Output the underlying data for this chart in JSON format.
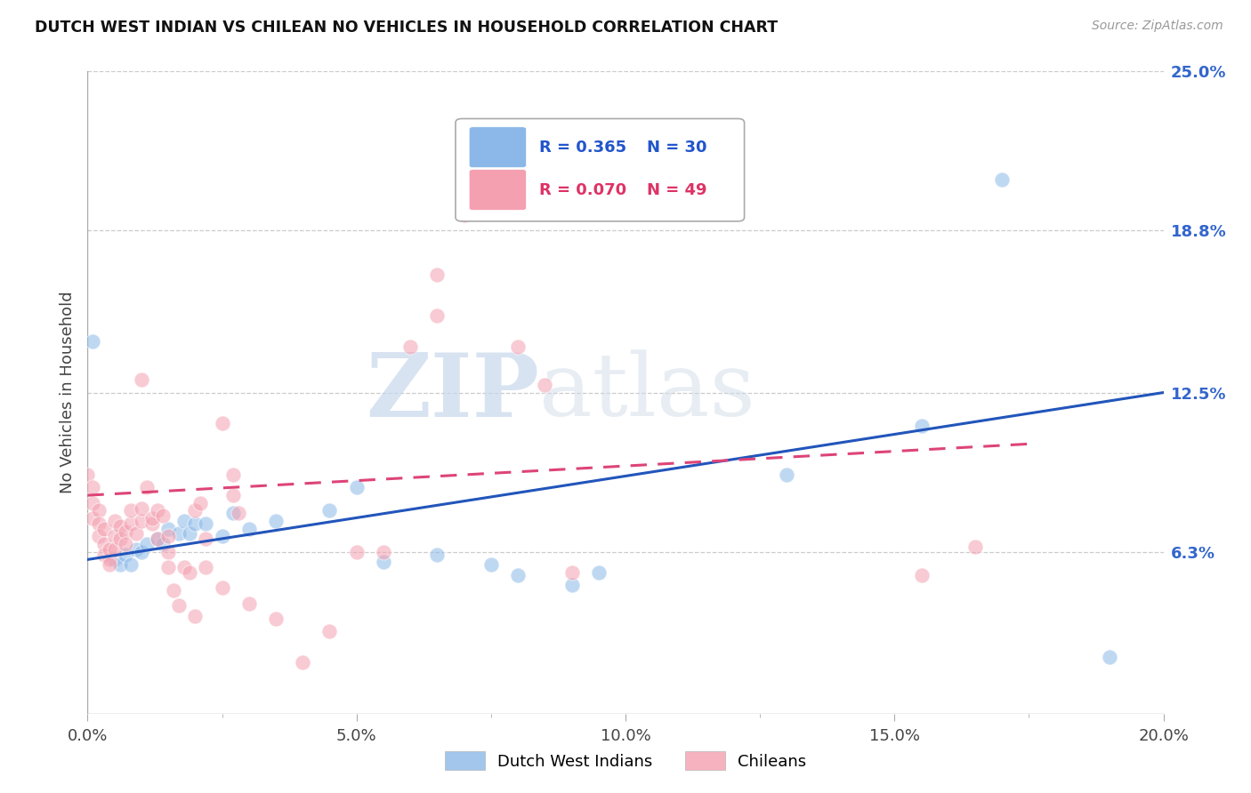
{
  "title": "DUTCH WEST INDIAN VS CHILEAN NO VEHICLES IN HOUSEHOLD CORRELATION CHART",
  "source": "Source: ZipAtlas.com",
  "ylabel": "No Vehicles in Household",
  "xlim": [
    0.0,
    0.2
  ],
  "ylim": [
    0.0,
    0.25
  ],
  "ytick_labels": [
    "6.3%",
    "12.5%",
    "18.8%",
    "25.0%"
  ],
  "ytick_values": [
    0.063,
    0.125,
    0.188,
    0.25
  ],
  "xtick_labels": [
    "0.0%",
    "",
    "5.0%",
    "",
    "10.0%",
    "",
    "15.0%",
    "",
    "20.0%"
  ],
  "xtick_values": [
    0.0,
    0.025,
    0.05,
    0.075,
    0.1,
    0.125,
    0.15,
    0.175,
    0.2
  ],
  "legend_label_blue": "Dutch West Indians",
  "legend_label_pink": "Chileans",
  "R_blue": 0.365,
  "N_blue": 30,
  "R_pink": 0.07,
  "N_pink": 49,
  "color_blue": "#8BB8E8",
  "color_pink": "#F4A0B0",
  "watermark_zip": "ZIP",
  "watermark_atlas": "atlas",
  "blue_scatter": [
    [
      0.001,
      0.145
    ],
    [
      0.005,
      0.06
    ],
    [
      0.006,
      0.058
    ],
    [
      0.007,
      0.062
    ],
    [
      0.008,
      0.058
    ],
    [
      0.009,
      0.064
    ],
    [
      0.01,
      0.063
    ],
    [
      0.011,
      0.066
    ],
    [
      0.013,
      0.068
    ],
    [
      0.014,
      0.066
    ],
    [
      0.015,
      0.072
    ],
    [
      0.017,
      0.07
    ],
    [
      0.018,
      0.075
    ],
    [
      0.019,
      0.07
    ],
    [
      0.02,
      0.074
    ],
    [
      0.022,
      0.074
    ],
    [
      0.025,
      0.069
    ],
    [
      0.027,
      0.078
    ],
    [
      0.03,
      0.072
    ],
    [
      0.035,
      0.075
    ],
    [
      0.045,
      0.079
    ],
    [
      0.05,
      0.088
    ],
    [
      0.055,
      0.059
    ],
    [
      0.065,
      0.062
    ],
    [
      0.075,
      0.058
    ],
    [
      0.08,
      0.054
    ],
    [
      0.09,
      0.05
    ],
    [
      0.095,
      0.055
    ],
    [
      0.13,
      0.093
    ],
    [
      0.155,
      0.112
    ],
    [
      0.17,
      0.208
    ],
    [
      0.19,
      0.022
    ]
  ],
  "pink_scatter": [
    [
      0.0,
      0.093
    ],
    [
      0.001,
      0.088
    ],
    [
      0.001,
      0.082
    ],
    [
      0.001,
      0.076
    ],
    [
      0.002,
      0.079
    ],
    [
      0.002,
      0.074
    ],
    [
      0.002,
      0.069
    ],
    [
      0.003,
      0.072
    ],
    [
      0.003,
      0.066
    ],
    [
      0.003,
      0.062
    ],
    [
      0.004,
      0.06
    ],
    [
      0.004,
      0.058
    ],
    [
      0.004,
      0.064
    ],
    [
      0.005,
      0.075
    ],
    [
      0.005,
      0.069
    ],
    [
      0.005,
      0.064
    ],
    [
      0.006,
      0.073
    ],
    [
      0.006,
      0.068
    ],
    [
      0.007,
      0.071
    ],
    [
      0.007,
      0.066
    ],
    [
      0.008,
      0.074
    ],
    [
      0.008,
      0.079
    ],
    [
      0.009,
      0.07
    ],
    [
      0.01,
      0.075
    ],
    [
      0.01,
      0.08
    ],
    [
      0.01,
      0.13
    ],
    [
      0.011,
      0.088
    ],
    [
      0.012,
      0.074
    ],
    [
      0.012,
      0.076
    ],
    [
      0.013,
      0.068
    ],
    [
      0.013,
      0.079
    ],
    [
      0.014,
      0.077
    ],
    [
      0.015,
      0.069
    ],
    [
      0.015,
      0.063
    ],
    [
      0.015,
      0.057
    ],
    [
      0.016,
      0.048
    ],
    [
      0.017,
      0.042
    ],
    [
      0.018,
      0.057
    ],
    [
      0.019,
      0.055
    ],
    [
      0.02,
      0.038
    ],
    [
      0.02,
      0.079
    ],
    [
      0.021,
      0.082
    ],
    [
      0.022,
      0.068
    ],
    [
      0.022,
      0.057
    ],
    [
      0.025,
      0.049
    ],
    [
      0.025,
      0.113
    ],
    [
      0.027,
      0.085
    ],
    [
      0.027,
      0.093
    ],
    [
      0.028,
      0.078
    ],
    [
      0.03,
      0.043
    ],
    [
      0.035,
      0.037
    ],
    [
      0.04,
      0.02
    ],
    [
      0.045,
      0.032
    ],
    [
      0.05,
      0.063
    ],
    [
      0.055,
      0.063
    ],
    [
      0.06,
      0.143
    ],
    [
      0.065,
      0.155
    ],
    [
      0.065,
      0.171
    ],
    [
      0.07,
      0.194
    ],
    [
      0.08,
      0.143
    ],
    [
      0.085,
      0.128
    ],
    [
      0.09,
      0.055
    ],
    [
      0.155,
      0.054
    ],
    [
      0.165,
      0.065
    ]
  ],
  "blue_line_x": [
    0.0,
    0.2
  ],
  "blue_line_y": [
    0.06,
    0.125
  ],
  "pink_line_x": [
    0.0,
    0.175
  ],
  "pink_line_y": [
    0.085,
    0.105
  ]
}
